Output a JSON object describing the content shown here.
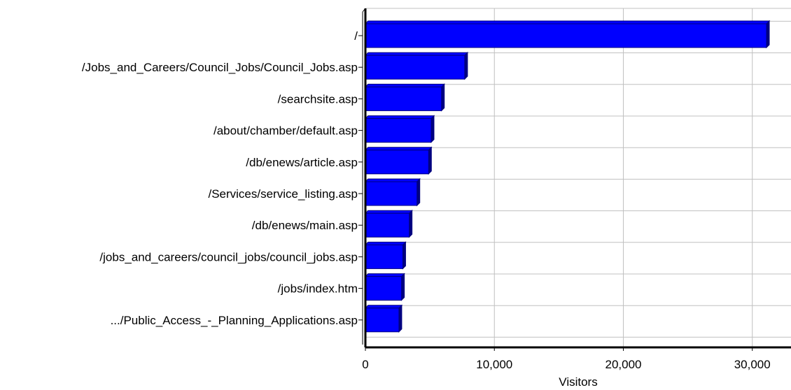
{
  "chart_data": {
    "type": "bar",
    "orientation": "horizontal",
    "categories": [
      "/",
      "/Jobs_and_Careers/Council_Jobs/Council_Jobs.asp",
      "/searchsite.asp",
      "/about/chamber/default.asp",
      "/db/enews/article.asp",
      "/Services/service_listing.asp",
      "/db/enews/main.asp",
      "/jobs_and_careers/council_jobs/council_jobs.asp",
      "/jobs/index.htm",
      ".../Public_Access_-_Planning_Applications.asp"
    ],
    "values": [
      31100,
      7700,
      5900,
      5100,
      4900,
      4000,
      3400,
      2900,
      2800,
      2600
    ],
    "xlabel": "Visitors",
    "ylabel": "",
    "xlim": [
      0,
      33000
    ],
    "xticks": [
      0,
      10000,
      20000,
      30000
    ],
    "xtick_labels": [
      "0",
      "10,000",
      "20,000",
      "30,000"
    ],
    "grid": true,
    "bar_color": "#0000ff",
    "bar_shade_color": "#000080",
    "grid_color": "#c0c0c0"
  }
}
